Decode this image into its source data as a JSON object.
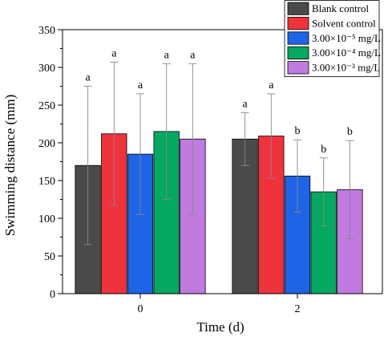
{
  "chart_data": {
    "type": "bar",
    "xlabel": "Time (d)",
    "ylabel": "Swimming distance (mm)",
    "ylim": [
      0,
      350
    ],
    "yticks": [
      0,
      50,
      100,
      150,
      200,
      250,
      300,
      350
    ],
    "categories": [
      "0",
      "2"
    ],
    "legend_position": "top-right",
    "series": [
      {
        "name": "Blank control",
        "color": "#4a4a4a",
        "values": [
          170,
          205
        ],
        "error": [
          105,
          35
        ],
        "labels": [
          "a",
          "a"
        ]
      },
      {
        "name": "Solvent control",
        "color": "#f0323c",
        "values": [
          212,
          209
        ],
        "error": [
          95,
          56
        ],
        "labels": [
          "a",
          "a"
        ]
      },
      {
        "name": "3.00×10⁻⁵ mg/L",
        "color": "#1e64e6",
        "values": [
          185,
          156
        ],
        "error": [
          80,
          48
        ],
        "labels": [
          "a",
          "b"
        ]
      },
      {
        "name": "3.00×10⁻⁴ mg/L",
        "color": "#05a860",
        "values": [
          215,
          135
        ],
        "error": [
          90,
          45
        ],
        "labels": [
          "a",
          "b"
        ]
      },
      {
        "name": "3.00×10⁻³ mg/L",
        "color": "#c07ae0",
        "values": [
          205,
          138
        ],
        "error": [
          100,
          65
        ],
        "labels": [
          "a",
          "b"
        ]
      }
    ]
  }
}
